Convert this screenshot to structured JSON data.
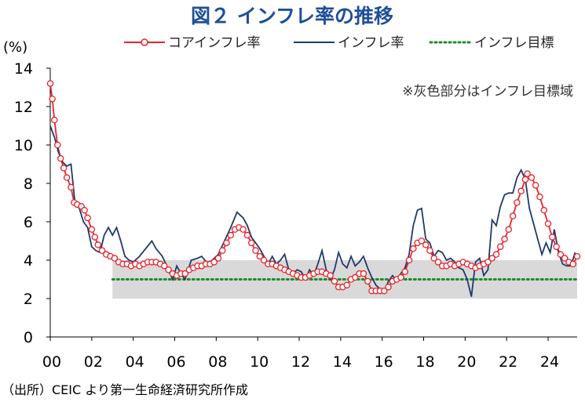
{
  "chart_data": {
    "type": "line",
    "title": "図２ インフレ率の推移",
    "unit_label": "(%)",
    "note": "※灰色部分はインフレ目標域",
    "source": "（出所）CEIC より第一生命経済研究所作成",
    "xlim": [
      2000.0,
      2025.4
    ],
    "ylim": [
      0,
      14
    ],
    "x_ticks": [
      2000,
      2002,
      2004,
      2006,
      2008,
      2010,
      2012,
      2014,
      2016,
      2018,
      2020,
      2022,
      2024
    ],
    "x_tick_labels": [
      "00",
      "02",
      "04",
      "06",
      "08",
      "10",
      "12",
      "14",
      "16",
      "18",
      "20",
      "22",
      "24"
    ],
    "y_ticks": [
      0,
      2,
      4,
      6,
      8,
      10,
      12,
      14
    ],
    "y_tick_labels": [
      "0",
      "2",
      "4",
      "6",
      "8",
      "10",
      "12",
      "14"
    ],
    "target_band": {
      "x_start": 2003.0,
      "x_end": 2025.4,
      "y_low": 2,
      "y_high": 4,
      "color": "#D9D9D9"
    },
    "series": [
      {
        "name": "コアインフレ率",
        "color": "#E8232A",
        "style": "line-with-markers",
        "points": [
          [
            2000.0,
            13.2
          ],
          [
            2000.1,
            12.4
          ],
          [
            2000.2,
            11.3
          ],
          [
            2000.35,
            10.0
          ],
          [
            2000.5,
            9.3
          ],
          [
            2000.65,
            8.8
          ],
          [
            2000.8,
            8.3
          ],
          [
            2001.0,
            7.8
          ],
          [
            2001.15,
            7.0
          ],
          [
            2001.3,
            6.9
          ],
          [
            2001.5,
            6.8
          ],
          [
            2001.65,
            6.6
          ],
          [
            2001.8,
            6.2
          ],
          [
            2002.0,
            5.6
          ],
          [
            2002.15,
            5.2
          ],
          [
            2002.3,
            4.8
          ],
          [
            2002.5,
            4.5
          ],
          [
            2002.7,
            4.3
          ],
          [
            2002.9,
            4.2
          ],
          [
            2003.1,
            4.1
          ],
          [
            2003.3,
            3.9
          ],
          [
            2003.5,
            3.8
          ],
          [
            2003.7,
            3.8
          ],
          [
            2003.9,
            3.7
          ],
          [
            2004.1,
            3.8
          ],
          [
            2004.3,
            3.7
          ],
          [
            2004.5,
            3.8
          ],
          [
            2004.7,
            3.9
          ],
          [
            2004.9,
            3.9
          ],
          [
            2005.1,
            3.9
          ],
          [
            2005.3,
            3.8
          ],
          [
            2005.5,
            3.7
          ],
          [
            2005.7,
            3.5
          ],
          [
            2005.9,
            3.3
          ],
          [
            2006.1,
            3.2
          ],
          [
            2006.3,
            3.3
          ],
          [
            2006.5,
            3.3
          ],
          [
            2006.7,
            3.5
          ],
          [
            2006.9,
            3.6
          ],
          [
            2007.1,
            3.7
          ],
          [
            2007.3,
            3.7
          ],
          [
            2007.5,
            3.8
          ],
          [
            2007.7,
            3.8
          ],
          [
            2007.9,
            3.9
          ],
          [
            2008.1,
            4.1
          ],
          [
            2008.3,
            4.5
          ],
          [
            2008.5,
            4.9
          ],
          [
            2008.7,
            5.3
          ],
          [
            2008.9,
            5.6
          ],
          [
            2009.1,
            5.7
          ],
          [
            2009.3,
            5.6
          ],
          [
            2009.5,
            5.3
          ],
          [
            2009.7,
            4.9
          ],
          [
            2009.9,
            4.5
          ],
          [
            2010.1,
            4.2
          ],
          [
            2010.3,
            4.0
          ],
          [
            2010.5,
            3.8
          ],
          [
            2010.7,
            3.8
          ],
          [
            2010.9,
            3.7
          ],
          [
            2011.1,
            3.6
          ],
          [
            2011.3,
            3.5
          ],
          [
            2011.5,
            3.4
          ],
          [
            2011.7,
            3.3
          ],
          [
            2011.9,
            3.2
          ],
          [
            2012.1,
            3.1
          ],
          [
            2012.3,
            3.1
          ],
          [
            2012.5,
            3.2
          ],
          [
            2012.7,
            3.3
          ],
          [
            2012.9,
            3.4
          ],
          [
            2013.1,
            3.4
          ],
          [
            2013.3,
            3.3
          ],
          [
            2013.5,
            3.2
          ],
          [
            2013.7,
            2.9
          ],
          [
            2013.9,
            2.6
          ],
          [
            2014.1,
            2.6
          ],
          [
            2014.3,
            2.7
          ],
          [
            2014.5,
            3.0
          ],
          [
            2014.7,
            3.1
          ],
          [
            2014.9,
            3.3
          ],
          [
            2015.1,
            3.3
          ],
          [
            2015.3,
            2.9
          ],
          [
            2015.5,
            2.4
          ],
          [
            2015.7,
            2.4
          ],
          [
            2015.9,
            2.4
          ],
          [
            2016.1,
            2.4
          ],
          [
            2016.3,
            2.6
          ],
          [
            2016.5,
            2.9
          ],
          [
            2016.7,
            3.0
          ],
          [
            2016.9,
            3.1
          ],
          [
            2017.1,
            3.4
          ],
          [
            2017.3,
            4.0
          ],
          [
            2017.5,
            4.6
          ],
          [
            2017.7,
            4.9
          ],
          [
            2017.9,
            5.0
          ],
          [
            2018.1,
            4.8
          ],
          [
            2018.3,
            4.5
          ],
          [
            2018.5,
            4.1
          ],
          [
            2018.7,
            3.9
          ],
          [
            2018.9,
            3.7
          ],
          [
            2019.1,
            3.7
          ],
          [
            2019.3,
            3.8
          ],
          [
            2019.5,
            3.7
          ],
          [
            2019.7,
            3.8
          ],
          [
            2019.9,
            3.9
          ],
          [
            2020.1,
            3.8
          ],
          [
            2020.3,
            3.7
          ],
          [
            2020.5,
            3.6
          ],
          [
            2020.7,
            3.7
          ],
          [
            2020.9,
            3.8
          ],
          [
            2021.1,
            3.9
          ],
          [
            2021.3,
            4.1
          ],
          [
            2021.5,
            4.3
          ],
          [
            2021.7,
            4.7
          ],
          [
            2021.9,
            5.1
          ],
          [
            2022.1,
            5.6
          ],
          [
            2022.3,
            6.3
          ],
          [
            2022.5,
            7.0
          ],
          [
            2022.7,
            7.6
          ],
          [
            2022.9,
            8.2
          ],
          [
            2023.0,
            8.5
          ],
          [
            2023.2,
            8.3
          ],
          [
            2023.4,
            7.9
          ],
          [
            2023.6,
            7.3
          ],
          [
            2023.8,
            6.6
          ],
          [
            2024.0,
            5.9
          ],
          [
            2024.2,
            5.2
          ],
          [
            2024.4,
            4.7
          ],
          [
            2024.6,
            4.3
          ],
          [
            2024.8,
            4.1
          ],
          [
            2025.0,
            3.9
          ],
          [
            2025.2,
            3.8
          ],
          [
            2025.4,
            4.2
          ]
        ]
      },
      {
        "name": "インフレ率",
        "color": "#1F3A6E",
        "style": "line",
        "points": [
          [
            2000.0,
            11.0
          ],
          [
            2000.2,
            10.4
          ],
          [
            2000.4,
            9.6
          ],
          [
            2000.6,
            9.1
          ],
          [
            2000.8,
            8.9
          ],
          [
            2001.0,
            9.0
          ],
          [
            2001.2,
            6.9
          ],
          [
            2001.4,
            6.7
          ],
          [
            2001.6,
            6.0
          ],
          [
            2001.8,
            5.7
          ],
          [
            2002.0,
            4.7
          ],
          [
            2002.2,
            4.5
          ],
          [
            2002.4,
            4.4
          ],
          [
            2002.6,
            5.3
          ],
          [
            2002.8,
            5.7
          ],
          [
            2003.0,
            5.3
          ],
          [
            2003.2,
            5.7
          ],
          [
            2003.4,
            5.0
          ],
          [
            2003.6,
            4.2
          ],
          [
            2003.8,
            4.0
          ],
          [
            2004.0,
            3.9
          ],
          [
            2004.3,
            4.2
          ],
          [
            2004.6,
            4.6
          ],
          [
            2004.9,
            5.0
          ],
          [
            2005.1,
            4.6
          ],
          [
            2005.4,
            4.2
          ],
          [
            2005.7,
            3.5
          ],
          [
            2005.9,
            3.0
          ],
          [
            2006.1,
            3.7
          ],
          [
            2006.3,
            3.3
          ],
          [
            2006.5,
            3.0
          ],
          [
            2006.8,
            4.0
          ],
          [
            2007.1,
            4.1
          ],
          [
            2007.3,
            4.2
          ],
          [
            2007.6,
            3.8
          ],
          [
            2007.9,
            4.1
          ],
          [
            2008.1,
            4.3
          ],
          [
            2008.4,
            5.0
          ],
          [
            2008.7,
            5.7
          ],
          [
            2009.0,
            6.5
          ],
          [
            2009.3,
            6.2
          ],
          [
            2009.5,
            5.8
          ],
          [
            2009.7,
            5.2
          ],
          [
            2009.9,
            4.9
          ],
          [
            2010.1,
            4.6
          ],
          [
            2010.3,
            4.2
          ],
          [
            2010.5,
            3.8
          ],
          [
            2010.7,
            4.2
          ],
          [
            2010.9,
            3.8
          ],
          [
            2011.1,
            4.0
          ],
          [
            2011.3,
            4.3
          ],
          [
            2011.5,
            3.5
          ],
          [
            2011.7,
            3.3
          ],
          [
            2011.9,
            3.5
          ],
          [
            2012.1,
            3.4
          ],
          [
            2012.3,
            3.0
          ],
          [
            2012.5,
            3.5
          ],
          [
            2012.7,
            3.2
          ],
          [
            2012.9,
            3.8
          ],
          [
            2013.1,
            4.5
          ],
          [
            2013.3,
            3.5
          ],
          [
            2013.5,
            3.0
          ],
          [
            2013.7,
            3.5
          ],
          [
            2013.9,
            4.4
          ],
          [
            2014.1,
            3.8
          ],
          [
            2014.3,
            3.6
          ],
          [
            2014.5,
            4.2
          ],
          [
            2014.7,
            3.7
          ],
          [
            2014.9,
            3.9
          ],
          [
            2015.1,
            4.2
          ],
          [
            2015.3,
            3.6
          ],
          [
            2015.5,
            3.1
          ],
          [
            2015.7,
            2.7
          ],
          [
            2015.9,
            2.5
          ],
          [
            2016.1,
            2.3
          ],
          [
            2016.3,
            2.9
          ],
          [
            2016.5,
            3.2
          ],
          [
            2016.7,
            2.9
          ],
          [
            2016.9,
            3.3
          ],
          [
            2017.1,
            3.6
          ],
          [
            2017.3,
            4.3
          ],
          [
            2017.5,
            5.8
          ],
          [
            2017.7,
            6.6
          ],
          [
            2017.9,
            6.7
          ],
          [
            2018.1,
            5.1
          ],
          [
            2018.3,
            4.9
          ],
          [
            2018.5,
            4.2
          ],
          [
            2018.7,
            4.5
          ],
          [
            2018.9,
            4.4
          ],
          [
            2019.1,
            4.0
          ],
          [
            2019.3,
            4.1
          ],
          [
            2019.5,
            3.9
          ],
          [
            2019.7,
            3.6
          ],
          [
            2019.9,
            3.5
          ],
          [
            2020.1,
            3.0
          ],
          [
            2020.3,
            2.1
          ],
          [
            2020.5,
            3.9
          ],
          [
            2020.7,
            4.1
          ],
          [
            2020.9,
            3.2
          ],
          [
            2021.1,
            3.5
          ],
          [
            2021.3,
            6.1
          ],
          [
            2021.5,
            5.8
          ],
          [
            2021.7,
            6.8
          ],
          [
            2021.9,
            7.4
          ],
          [
            2022.1,
            7.5
          ],
          [
            2022.3,
            7.5
          ],
          [
            2022.5,
            8.3
          ],
          [
            2022.7,
            8.7
          ],
          [
            2022.9,
            8.2
          ],
          [
            2023.1,
            6.7
          ],
          [
            2023.3,
            5.9
          ],
          [
            2023.5,
            5.1
          ],
          [
            2023.7,
            4.3
          ],
          [
            2023.9,
            4.9
          ],
          [
            2024.1,
            4.4
          ],
          [
            2024.3,
            5.6
          ],
          [
            2024.5,
            4.4
          ],
          [
            2024.7,
            3.8
          ],
          [
            2024.9,
            3.7
          ],
          [
            2025.1,
            3.7
          ],
          [
            2025.3,
            4.4
          ]
        ]
      },
      {
        "name": "インフレ目標",
        "color": "#1E8C2A",
        "style": "dotted",
        "points": [
          [
            2003.0,
            3
          ],
          [
            2025.4,
            3
          ]
        ]
      }
    ],
    "legend_position": "top"
  }
}
